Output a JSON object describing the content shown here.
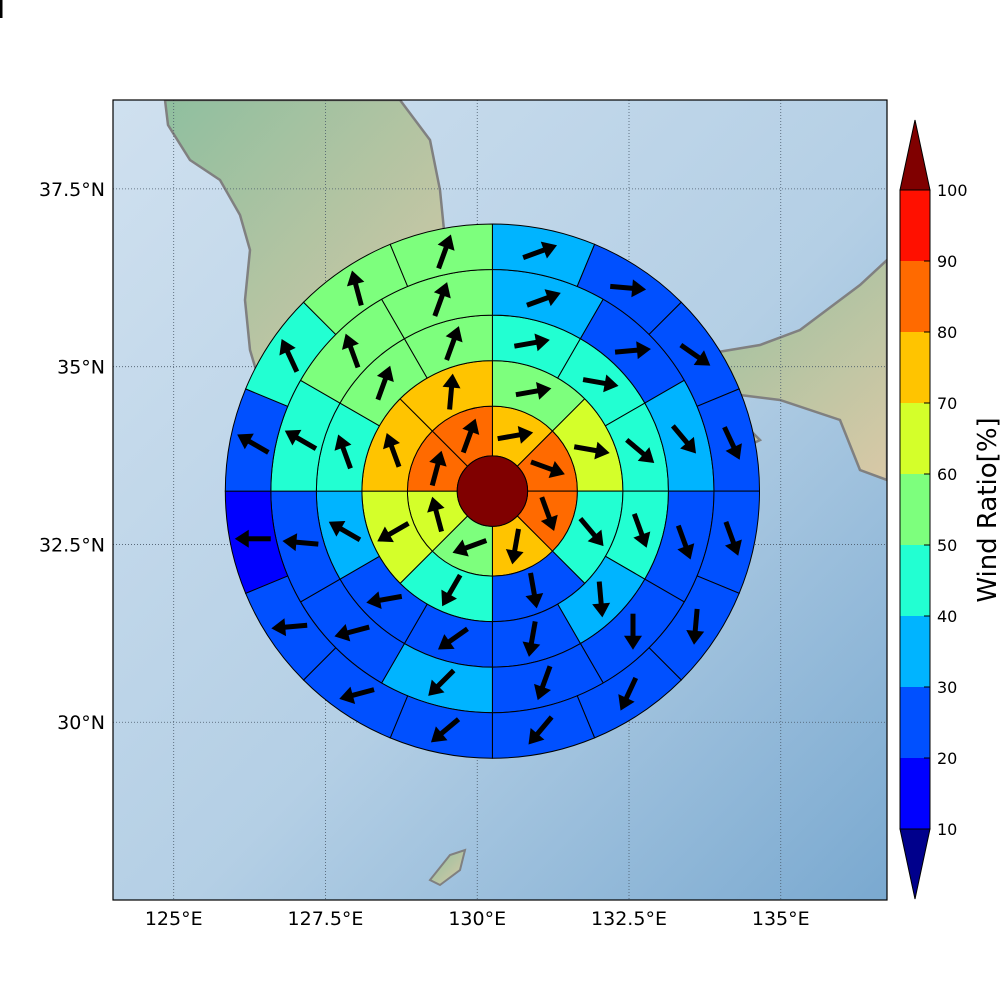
{
  "chart_data": {
    "type": "polar-sector-map",
    "map": {
      "lon_range": [
        124.0,
        136.75
      ],
      "lat_range": [
        27.5,
        38.75
      ],
      "x_ticks": [
        {
          "value": 125.0,
          "label": "125°E"
        },
        {
          "value": 127.5,
          "label": "127.5°E"
        },
        {
          "value": 130.0,
          "label": "130°E"
        },
        {
          "value": 132.5,
          "label": "132.5°E"
        },
        {
          "value": 135.0,
          "label": "135°E"
        }
      ],
      "y_ticks": [
        {
          "value": 30.0,
          "label": "30°N"
        },
        {
          "value": 32.5,
          "label": "32.5°N"
        },
        {
          "value": 35.0,
          "label": "35°N"
        },
        {
          "value": 37.5,
          "label": "37.5°N"
        }
      ],
      "grid": true,
      "center": {
        "lon": 130.25,
        "lat": 33.25
      },
      "ring_radii_deg": [
        0.58,
        1.4,
        2.15,
        2.9,
        3.65,
        4.4
      ]
    },
    "colorbar": {
      "label": "Wind Ratio[%]",
      "ticks": [
        "10",
        "20",
        "30",
        "40",
        "50",
        "60",
        "70",
        "80",
        "90",
        "100"
      ],
      "levels": [
        {
          "min": 10,
          "max": 20,
          "color": "#0000ff"
        },
        {
          "min": 20,
          "max": 30,
          "color": "#0050ff"
        },
        {
          "min": 30,
          "max": 40,
          "color": "#00b4ff"
        },
        {
          "min": 40,
          "max": 50,
          "color": "#22ffd2"
        },
        {
          "min": 50,
          "max": 60,
          "color": "#7dff7d"
        },
        {
          "min": 60,
          "max": 70,
          "color": "#d4ff2a"
        },
        {
          "min": 70,
          "max": 80,
          "color": "#ffc400"
        },
        {
          "min": 80,
          "max": 90,
          "color": "#ff6a00"
        },
        {
          "min": 90,
          "max": 100,
          "color": "#ff1000"
        }
      ],
      "under_color": "#00008c",
      "over_color": "#800000",
      "extend": "both"
    },
    "center_value": 95,
    "center_color": "#800000",
    "sector_angles_deg_clockwise_from_north": [
      0,
      22.5,
      45,
      67.5,
      90,
      112.5,
      135,
      157.5,
      180,
      202.5,
      225,
      247.5,
      270,
      292.5,
      315,
      337.5
    ],
    "rings": [
      {
        "sectors": 8,
        "values": [
          75,
          85,
          85,
          75,
          55,
          65,
          85,
          85
        ],
        "arrow_dir_deg": [
          80,
          110,
          160,
          190,
          250,
          345,
          15,
          20
        ]
      },
      {
        "sectors": 8,
        "values": [
          55,
          65,
          45,
          25,
          45,
          65,
          75,
          75
        ],
        "arrow_dir_deg": [
          80,
          100,
          140,
          170,
          210,
          240,
          340,
          5
        ]
      },
      {
        "sectors": 12,
        "values": [
          45,
          45,
          45,
          45,
          35,
          25,
          25,
          25,
          35,
          45,
          55,
          55
        ],
        "arrow_dir_deg": [
          80,
          100,
          130,
          160,
          175,
          190,
          235,
          260,
          300,
          340,
          20,
          20
        ]
      },
      {
        "sectors": 12,
        "values": [
          35,
          25,
          35,
          25,
          25,
          25,
          35,
          25,
          25,
          45,
          55,
          55
        ],
        "arrow_dir_deg": [
          70,
          85,
          140,
          160,
          180,
          200,
          225,
          255,
          275,
          300,
          340,
          20
        ]
      },
      {
        "sectors": 16,
        "values": [
          35,
          25,
          25,
          25,
          25,
          25,
          25,
          25,
          25,
          25,
          25,
          15,
          25,
          45,
          55,
          55
        ],
        "arrow_dir_deg": [
          70,
          95,
          125,
          155,
          160,
          185,
          205,
          220,
          230,
          255,
          265,
          270,
          300,
          335,
          345,
          20
        ]
      },
      {
        "sectors": 16,
        "values": [
          35,
          25,
          25,
          25,
          35,
          25,
          25,
          25,
          25,
          25,
          15,
          15,
          25,
          35,
          65,
          45
        ],
        "arrow_dir_deg": [
          70,
          85,
          100,
          150,
          160,
          180,
          195,
          205,
          215,
          240,
          265,
          275,
          300,
          335,
          345,
          15
        ]
      }
    ]
  }
}
